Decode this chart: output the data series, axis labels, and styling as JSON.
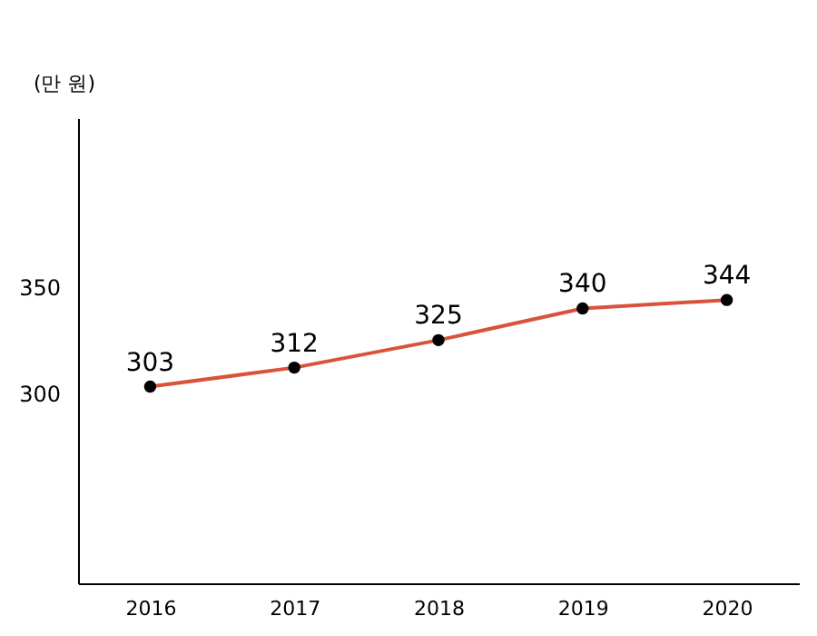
{
  "chart_data": {
    "type": "line",
    "ylabel": "(만 원)",
    "categories": [
      "2016",
      "2017",
      "2018",
      "2019",
      "2020"
    ],
    "series": [
      {
        "color": "#d9533a",
        "values": [
          303,
          312,
          325,
          340,
          344
        ]
      }
    ],
    "ylim": [
      210,
      430
    ],
    "yticks": [
      300,
      350
    ],
    "grid": false,
    "marker": "circle",
    "data_labels": true,
    "legend": false
  }
}
